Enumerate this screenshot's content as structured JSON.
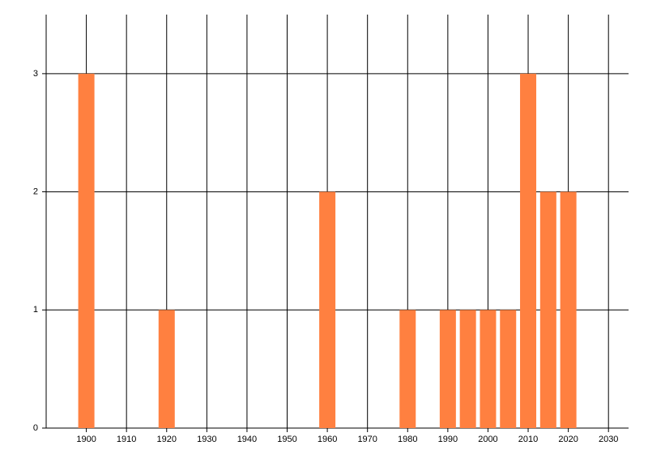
{
  "chart_data": {
    "type": "bar",
    "x": [
      1900,
      1920,
      1960,
      1980,
      1990,
      1995,
      2000,
      2005,
      2010,
      2015,
      2020
    ],
    "values": [
      3,
      1,
      2,
      1,
      1,
      1,
      1,
      1,
      3,
      2,
      2
    ],
    "color": "#ff8040",
    "xlim": [
      1890,
      2035
    ],
    "xticks": [
      1900,
      1910,
      1920,
      1930,
      1940,
      1950,
      1960,
      1970,
      1980,
      1990,
      2000,
      2010,
      2020,
      2030
    ],
    "ylim": [
      0,
      3.5
    ],
    "yticks": [
      0,
      1,
      2,
      3
    ],
    "grid": true
  }
}
